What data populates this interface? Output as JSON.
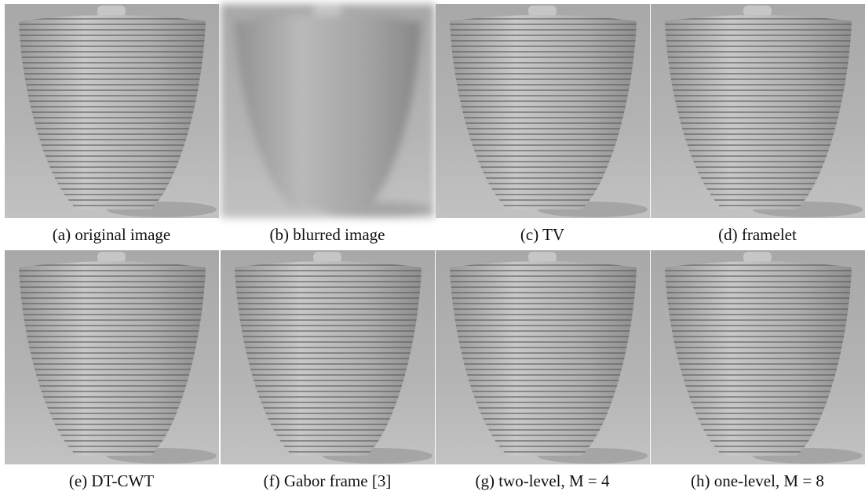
{
  "figure": {
    "captions": [
      "(a) original image",
      "(b) blurred image",
      "(c) TV",
      "(d) framelet",
      "(e) DT-CWT",
      "(f) Gabor frame [3]",
      "(g) two-level, M = 4",
      "(h) one-level, M = 8"
    ]
  }
}
